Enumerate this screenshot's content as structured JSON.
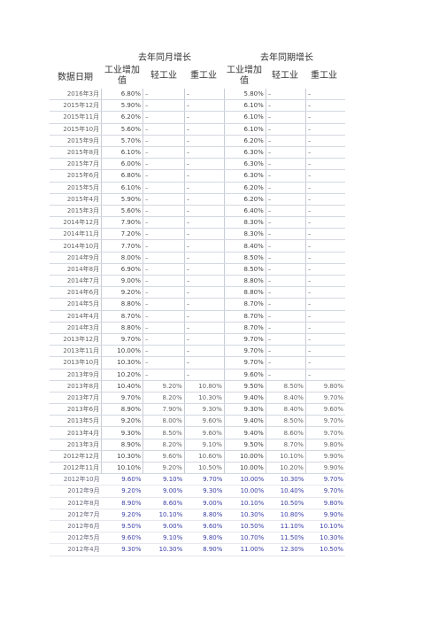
{
  "header": {
    "group_left": "去年同月增长",
    "group_right": "去年同期增长",
    "date_col": "数据日期",
    "cols": [
      "工业增加值",
      "轻工业",
      "重工业",
      "工业增加值",
      "轻工业",
      "重工业"
    ]
  },
  "rows": [
    [
      "2016年3月",
      "6.80%",
      "–",
      "–",
      "5.80%",
      "–",
      "–"
    ],
    [
      "2015年12月",
      "5.90%",
      "–",
      "–",
      "6.10%",
      "–",
      "–"
    ],
    [
      "2015年11月",
      "6.20%",
      "–",
      "–",
      "6.10%",
      "–",
      "–"
    ],
    [
      "2015年10月",
      "5.60%",
      "–",
      "–",
      "6.10%",
      "–",
      "–"
    ],
    [
      "2015年9月",
      "5.70%",
      "–",
      "–",
      "6.20%",
      "–",
      "–"
    ],
    [
      "2015年8月",
      "6.10%",
      "–",
      "–",
      "6.30%",
      "–",
      "–"
    ],
    [
      "2015年7月",
      "6.00%",
      "–",
      "–",
      "6.30%",
      "–",
      "–"
    ],
    [
      "2015年6月",
      "6.80%",
      "–",
      "–",
      "6.30%",
      "–",
      "–"
    ],
    [
      "2015年5月",
      "6.10%",
      "–",
      "–",
      "6.20%",
      "–",
      "–"
    ],
    [
      "2015年4月",
      "5.90%",
      "–",
      "–",
      "6.20%",
      "–",
      "–"
    ],
    [
      "2015年3月",
      "5.60%",
      "–",
      "–",
      "6.40%",
      "–",
      "–"
    ],
    [
      "2014年12月",
      "7.90%",
      "–",
      "–",
      "8.30%",
      "–",
      "–"
    ],
    [
      "2014年11月",
      "7.20%",
      "–",
      "–",
      "8.30%",
      "–",
      "–"
    ],
    [
      "2014年10月",
      "7.70%",
      "–",
      "–",
      "8.40%",
      "–",
      "–"
    ],
    [
      "2014年9月",
      "8.00%",
      "–",
      "–",
      "8.50%",
      "–",
      "–"
    ],
    [
      "2014年8月",
      "6.90%",
      "–",
      "–",
      "8.50%",
      "–",
      "–"
    ],
    [
      "2014年7月",
      "9.00%",
      "–",
      "–",
      "8.80%",
      "–",
      "–"
    ],
    [
      "2014年6月",
      "9.20%",
      "–",
      "–",
      "8.80%",
      "–",
      "–"
    ],
    [
      "2014年5月",
      "8.80%",
      "–",
      "–",
      "8.70%",
      "–",
      "–"
    ],
    [
      "2014年4月",
      "8.70%",
      "–",
      "–",
      "8.70%",
      "–",
      "–"
    ],
    [
      "2014年3月",
      "8.80%",
      "–",
      "–",
      "8.70%",
      "–",
      "–"
    ],
    [
      "2013年12月",
      "9.70%",
      "–",
      "–",
      "9.70%",
      "–",
      "–"
    ],
    [
      "2013年11月",
      "10.00%",
      "–",
      "–",
      "9.70%",
      "–",
      "–"
    ],
    [
      "2013年10月",
      "10.30%",
      "–",
      "–",
      "9.70%",
      "–",
      "–"
    ],
    [
      "2013年9月",
      "10.20%",
      "–",
      "–",
      "9.60%",
      "–",
      "–"
    ],
    [
      "2013年8月",
      "10.40%",
      "9.20%",
      "10.80%",
      "9.50%",
      "8.50%",
      "9.80%"
    ],
    [
      "2013年7月",
      "9.70%",
      "8.20%",
      "10.30%",
      "9.40%",
      "8.40%",
      "9.70%"
    ],
    [
      "2013年6月",
      "8.90%",
      "7.90%",
      "9.30%",
      "9.30%",
      "8.40%",
      "9.60%"
    ],
    [
      "2013年5月",
      "9.20%",
      "8.00%",
      "9.60%",
      "9.40%",
      "8.50%",
      "9.70%"
    ],
    [
      "2013年4月",
      "9.30%",
      "8.50%",
      "9.60%",
      "9.40%",
      "8.60%",
      "9.70%"
    ],
    [
      "2013年3月",
      "8.90%",
      "8.20%",
      "9.10%",
      "9.50%",
      "8.70%",
      "9.80%"
    ],
    [
      "2012年12月",
      "10.30%",
      "9.60%",
      "10.60%",
      "10.00%",
      "10.10%",
      "9.90%"
    ],
    [
      "2012年11月",
      "10.10%",
      "9.20%",
      "10.50%",
      "10.00%",
      "10.20%",
      "9.90%"
    ],
    [
      "2012年10月",
      "9.60%",
      "9.10%",
      "9.70%",
      "10.00%",
      "10.30%",
      "9.70%"
    ],
    [
      "2012年9月",
      "9.20%",
      "9.00%",
      "9.30%",
      "10.00%",
      "10.40%",
      "9.70%"
    ],
    [
      "2012年8月",
      "8.90%",
      "8.60%",
      "9.00%",
      "10.10%",
      "10.50%",
      "9.80%"
    ],
    [
      "2012年7月",
      "9.20%",
      "10.10%",
      "8.80%",
      "10.30%",
      "10.80%",
      "9.90%"
    ],
    [
      "2012年6月",
      "9.50%",
      "9.00%",
      "9.60%",
      "10.50%",
      "11.10%",
      "10.10%"
    ],
    [
      "2012年5月",
      "9.60%",
      "9.10%",
      "9.80%",
      "10.70%",
      "11.50%",
      "10.30%"
    ],
    [
      "2012年4月",
      "9.30%",
      "10.30%",
      "8.90%",
      "11.00%",
      "12.30%",
      "10.50%"
    ]
  ]
}
